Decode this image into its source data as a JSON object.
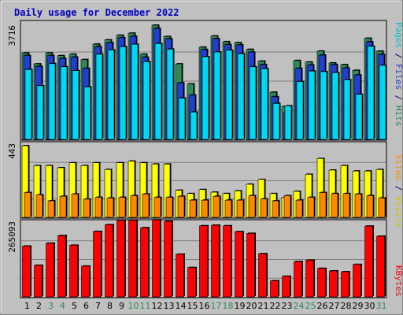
{
  "chart_data": {
    "type": "bar",
    "title": "Daily usage for December 2022",
    "categories": [
      "1",
      "2",
      "3",
      "4",
      "5",
      "6",
      "7",
      "8",
      "9",
      "10",
      "11",
      "12",
      "13",
      "14",
      "15",
      "16",
      "17",
      "18",
      "19",
      "20",
      "21",
      "22",
      "23",
      "24",
      "25",
      "26",
      "27",
      "28",
      "29",
      "30",
      "31"
    ],
    "weekend_days": [
      "3",
      "4",
      "10",
      "11",
      "17",
      "18",
      "24",
      "25",
      "31"
    ],
    "panels": [
      {
        "id": "top",
        "axis_max_label": "3716",
        "ylim": [
          0,
          3716
        ],
        "series": [
          {
            "name": "Hits",
            "color": "#2e8b57",
            "values": [
              2756,
              2409,
              2756,
              2670,
              2716,
              2547,
              3038,
              3172,
              3322,
              3387,
              2716,
              3640,
              3280,
              2409,
              1769,
              2939,
              3297,
              3117,
              3085,
              2871,
              2497,
              1503,
              1052,
              2517,
              2466,
              2815,
              2438,
              2386,
              2202,
              3223,
              2812
            ]
          },
          {
            "name": "Files",
            "color": "#2040d0",
            "values": [
              2674,
              2328,
              2674,
              2582,
              2625,
              2265,
              2957,
              3082,
              3241,
              3287,
              2620,
              3538,
              3203,
              1803,
              1410,
              2865,
              3211,
              3023,
              3010,
              2783,
              2382,
              1360,
              865,
              2265,
              2370,
              2686,
              2382,
              2277,
              2053,
              3112,
              2709
            ]
          },
          {
            "name": "Pages",
            "color": "#00d8f0",
            "values": [
              2227,
              1709,
              2416,
              2314,
              2193,
              1671,
              2713,
              2853,
              2956,
              3034,
              2478,
              3056,
              2877,
              1315,
              872,
              2636,
              2785,
              2842,
              2732,
              2314,
              2253,
              1144,
              1072,
              1842,
              2176,
              2159,
              2125,
              1904,
              1437,
              2969,
              2360
            ]
          }
        ]
      },
      {
        "id": "middle",
        "axis_max_label": "443",
        "ylim": [
          0,
          443
        ],
        "series": [
          {
            "name": "Visits",
            "color": "#ffff00",
            "values": [
              433,
              313,
              313,
              300,
              330,
              313,
              330,
              289,
              330,
              340,
              330,
              322,
              322,
              164,
              144,
              168,
              152,
              144,
              160,
              200,
              229,
              144,
              120,
              157,
              260,
              356,
              286,
              313,
              280,
              280,
              289
            ]
          },
          {
            "name": "Sites",
            "color": "#ff8800",
            "values": [
              150,
              136,
              100,
              127,
              141,
              110,
              121,
              117,
              121,
              131,
              141,
              121,
              121,
              127,
              104,
              104,
              127,
              104,
              104,
              131,
              111,
              100,
              131,
              104,
              121,
              150,
              144,
              144,
              141,
              131,
              117
            ]
          }
        ]
      },
      {
        "id": "bottom",
        "axis_max_label": "265093",
        "ylim": [
          0,
          265093
        ],
        "series": [
          {
            "name": "KBytes",
            "color": "#ff0000",
            "values": [
              180000,
              112000,
              190000,
              217000,
              183000,
              109000,
              232000,
              256000,
              271000,
              271000,
              245000,
              273000,
              268000,
              151000,
              104000,
              252000,
              254000,
              252000,
              231000,
              225000,
              153000,
              57000,
              73000,
              125000,
              130000,
              101000,
              92000,
              89000,
              115000,
              251000,
              215000
            ]
          }
        ]
      }
    ],
    "legend_top": {
      "parts": [
        {
          "text": "Pages",
          "color": "#00c0d0"
        },
        {
          "text": " / ",
          "color": "#000080"
        },
        {
          "text": "Files",
          "color": "#2040d0"
        },
        {
          "text": " / ",
          "color": "#000080"
        },
        {
          "text": "Hits",
          "color": "#2e8b57"
        }
      ]
    },
    "legend_middle": {
      "parts": [
        {
          "text": "Sites",
          "color": "#ff8800"
        },
        {
          "text": " / ",
          "color": "#000080"
        },
        {
          "text": "Visits",
          "color": "#d0c000"
        }
      ]
    },
    "legend_bottom": {
      "parts": [
        {
          "text": "KBytes",
          "color": "#ff0000"
        }
      ]
    },
    "colors": {
      "background": "#c0c0c0",
      "title": "#0000c0",
      "weekday": "#000000",
      "weekend": "#2e8b57"
    }
  }
}
